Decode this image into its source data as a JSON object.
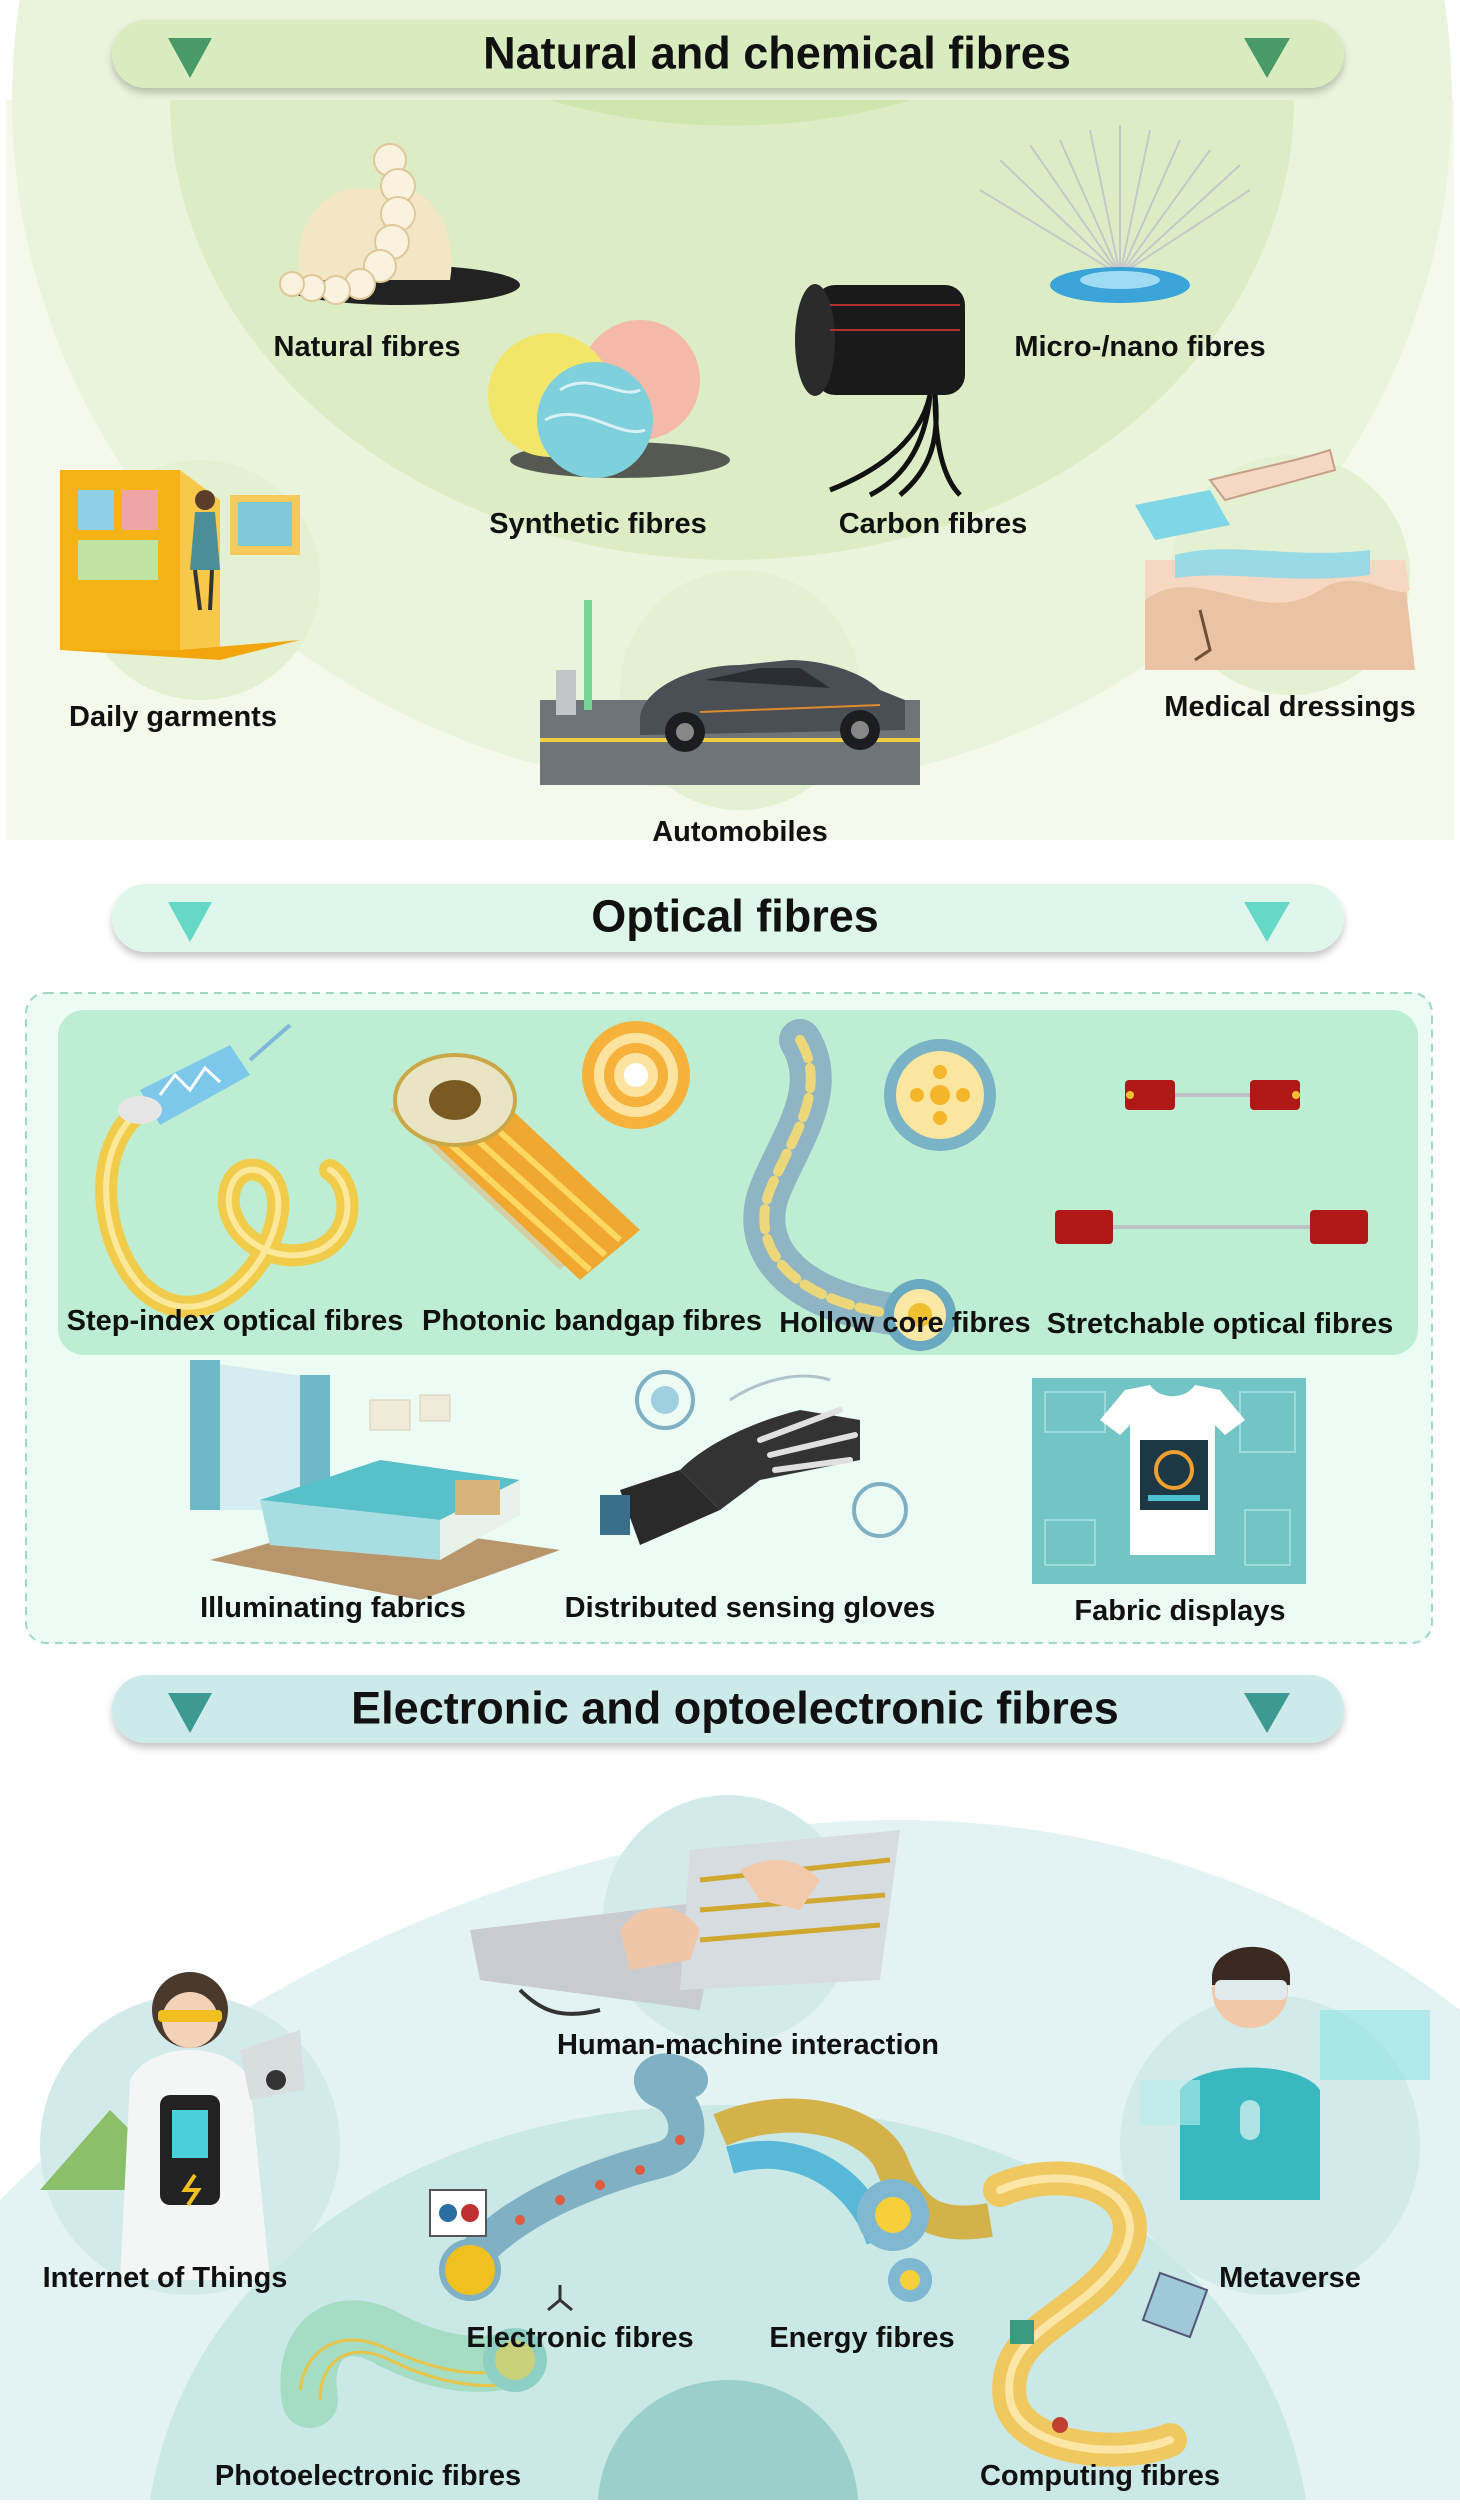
{
  "sections": [
    {
      "title": "Natural and chemical fibres",
      "items": [
        {
          "label": "Natural fibres"
        },
        {
          "label": "Micro-/nano fibres"
        },
        {
          "label": "Synthetic fibres"
        },
        {
          "label": "Carbon fibres"
        },
        {
          "label": "Daily garments"
        },
        {
          "label": "Medical dressings"
        },
        {
          "label": "Automobiles"
        }
      ]
    },
    {
      "title": "Optical fibres",
      "items": [
        {
          "label": "Step-index optical fibres"
        },
        {
          "label": "Photonic bandgap fibres"
        },
        {
          "label": "Hollow core fibres"
        },
        {
          "label": "Stretchable optical fibres"
        },
        {
          "label": "Illuminating fabrics"
        },
        {
          "label": "Distributed sensing gloves"
        },
        {
          "label": "Fabric displays"
        }
      ]
    },
    {
      "title": "Electronic and optoelectronic fibres",
      "items": [
        {
          "label": "Human-machine interaction"
        },
        {
          "label": "Internet of Things"
        },
        {
          "label": "Metaverse"
        },
        {
          "label": "Electronic fibres"
        },
        {
          "label": "Energy fibres"
        },
        {
          "label": "Photoelectronic fibres"
        },
        {
          "label": "Computing fibres"
        }
      ]
    }
  ],
  "colors": {
    "section1": "#dcefc4",
    "section2": "#c6f0d8",
    "section3": "#c4e6e6",
    "triangle1": "#4a9a68",
    "triangle2": "#66d8c8",
    "triangle3": "#3c9a92"
  }
}
